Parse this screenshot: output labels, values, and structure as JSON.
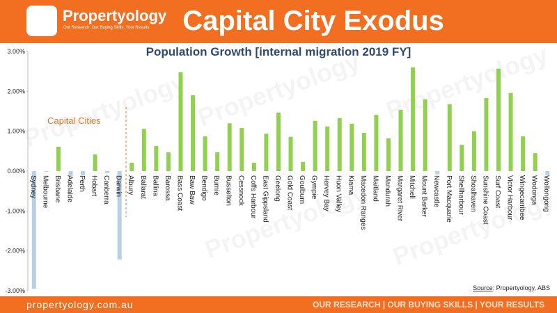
{
  "header": {
    "logo_name": "Propertyology",
    "logo_tagline": "Our Research. Our Buying Skills. Your Results",
    "title": "Capital City Exodus"
  },
  "chart_data": {
    "type": "bar",
    "title": "Population Growth [internal migration 2019 FY]",
    "annotation": "Capital Cities",
    "categories": [
      "Sydney",
      "Melbourne",
      "Brisbane",
      "Adelaide",
      "Perth",
      "Hobart",
      "Canberra",
      "Darwin",
      "Albury",
      "Ballarat",
      "Ballina",
      "Barossa",
      "Bass Coast",
      "Baw Baw",
      "Bendigo",
      "Burnie",
      "Busselton",
      "Cessnock",
      "Coffs Harbour",
      "East Gippsland",
      "Geelong",
      "Gold Coast",
      "Goulburn",
      "Gympie",
      "Hervey Bay",
      "Huon Valley",
      "Kiama",
      "Macedon Ranges",
      "Maitland",
      "Mandurah",
      "Margaret River",
      "Mitchell",
      "Mount Barker",
      "Newcastle",
      "Port Macquarie",
      "Shellharbour",
      "Shoalhaven",
      "Sunshine Coast",
      "Surf Coast",
      "Victor Harbour",
      "Wingecarribee",
      "Wodonga",
      "Wollongong"
    ],
    "values": [
      -2.95,
      -0.02,
      0.61,
      -0.12,
      -0.1,
      0.42,
      -0.05,
      -2.22,
      0.21,
      1.06,
      0.63,
      0.47,
      2.48,
      1.9,
      0.87,
      0.47,
      1.2,
      1.08,
      0.21,
      0.94,
      1.47,
      0.86,
      0.23,
      1.26,
      1.12,
      1.33,
      1.19,
      0.96,
      1.41,
      0.82,
      1.54,
      2.6,
      1.8,
      -0.08,
      1.68,
      0.66,
      1.0,
      1.83,
      2.57,
      1.96,
      0.87,
      0.45,
      -0.1
    ],
    "colors": [
      "#b8cfe6",
      "#b8cfe6",
      "#92d050",
      "#b8cfe6",
      "#b8cfe6",
      "#92d050",
      "#b8cfe6",
      "#b8cfe6",
      "#92d050",
      "#92d050",
      "#92d050",
      "#92d050",
      "#92d050",
      "#92d050",
      "#92d050",
      "#92d050",
      "#92d050",
      "#92d050",
      "#92d050",
      "#92d050",
      "#92d050",
      "#92d050",
      "#92d050",
      "#92d050",
      "#92d050",
      "#92d050",
      "#92d050",
      "#92d050",
      "#92d050",
      "#92d050",
      "#92d050",
      "#92d050",
      "#92d050",
      "#b8cfe6",
      "#92d050",
      "#92d050",
      "#92d050",
      "#92d050",
      "#92d050",
      "#92d050",
      "#92d050",
      "#92d050",
      "#b8cfe6"
    ],
    "ylim": [
      -3,
      3
    ],
    "yticks": [
      {
        "value": 3,
        "label": "3.00%"
      },
      {
        "value": 2,
        "label": "2.00%"
      },
      {
        "value": 1,
        "label": "1.00%"
      },
      {
        "value": 0,
        "label": "0.00%"
      },
      {
        "value": -1,
        "label": "-1.00%"
      },
      {
        "value": -2,
        "label": "-2.00%"
      },
      {
        "value": -3,
        "label": "-3.00%"
      }
    ],
    "grid": false,
    "source_label": "Source",
    "source_text": ": Propertyology, ABS",
    "watermark": "Propertyology"
  },
  "footer": {
    "website": "propertyology.com.au",
    "slogan": "OUR RESEARCH | OUR BUYING SKILLS | YOUR RESULTS"
  }
}
